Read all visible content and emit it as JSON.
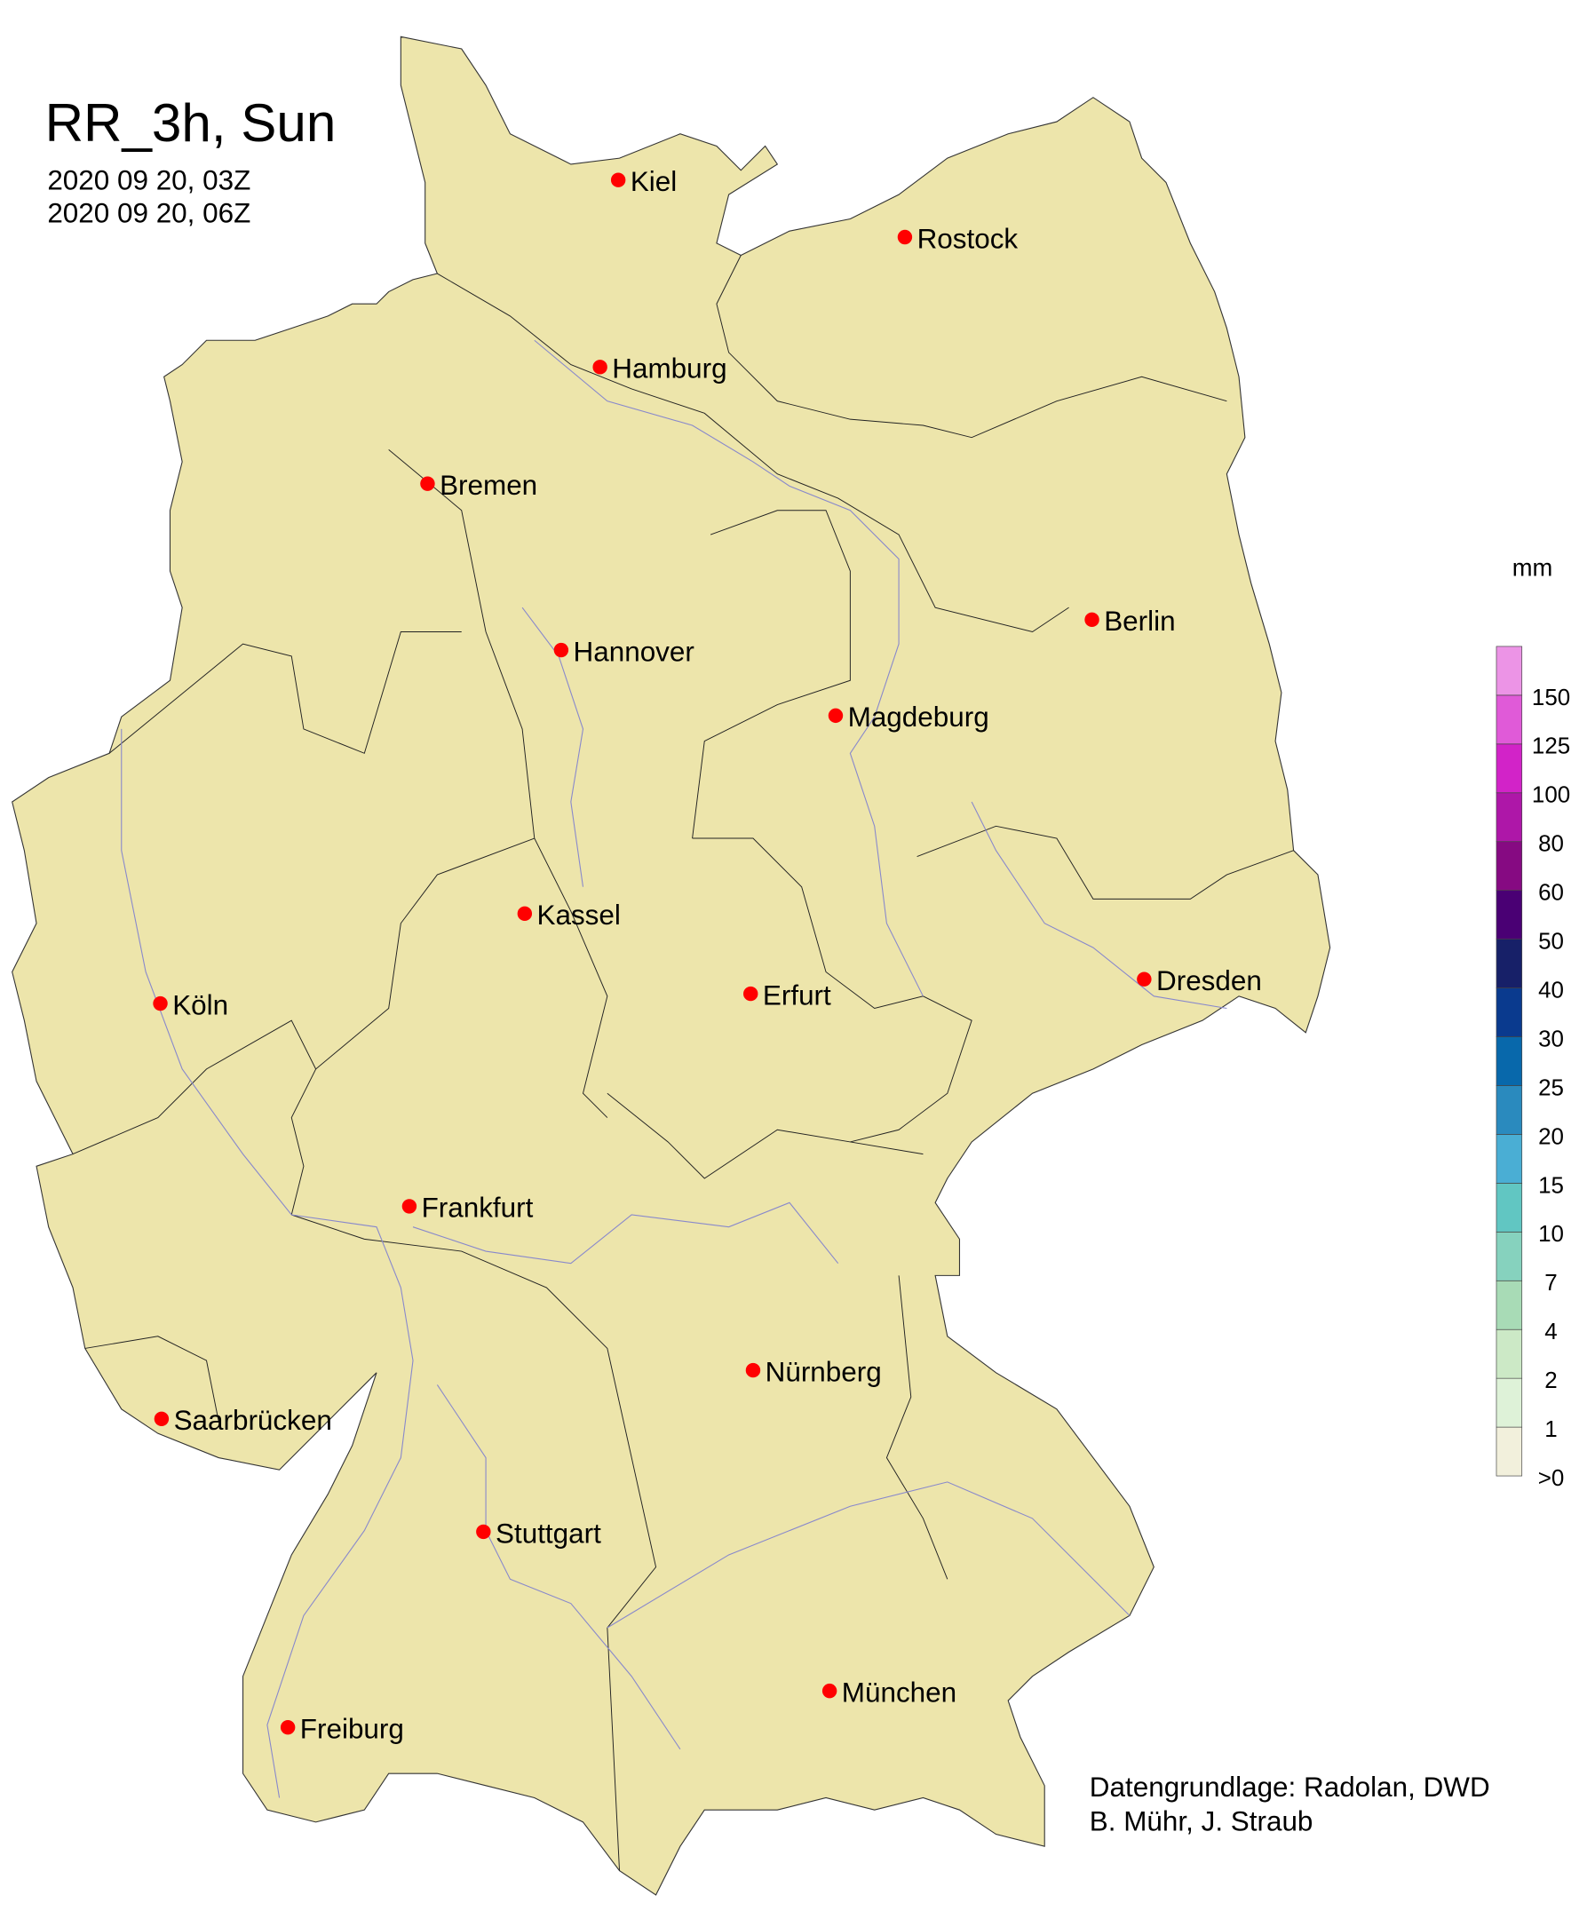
{
  "title": "RR_3h, Sun",
  "time_start": "2020 09 20, 03Z",
  "time_end": "2020 09 20, 06Z",
  "land_color": "#ede5ab",
  "marker_color": "#ff0000",
  "cities": [
    {
      "name": "Kiel"
    },
    {
      "name": "Rostock"
    },
    {
      "name": "Hamburg"
    },
    {
      "name": "Bremen"
    },
    {
      "name": "Berlin"
    },
    {
      "name": "Hannover"
    },
    {
      "name": "Magdeburg"
    },
    {
      "name": "Kassel"
    },
    {
      "name": "Köln"
    },
    {
      "name": "Erfurt"
    },
    {
      "name": "Dresden"
    },
    {
      "name": "Frankfurt"
    },
    {
      "name": "Nürnberg"
    },
    {
      "name": "Saarbrücken"
    },
    {
      "name": "Stuttgart"
    },
    {
      "name": "München"
    },
    {
      "name": "Freiburg"
    }
  ],
  "legend": {
    "unit": "mm",
    "labels": [
      ">0",
      "1",
      "2",
      "4",
      "7",
      "10",
      "15",
      "20",
      "25",
      "30",
      "40",
      "50",
      "60",
      "80",
      "100",
      "125",
      "150"
    ],
    "colors": [
      "#f2f0dc",
      "#def2d8",
      "#cce9c6",
      "#a8dbb6",
      "#86d2be",
      "#61c6c2",
      "#4aaed4",
      "#2a8abe",
      "#0868ab",
      "#0a3a8e",
      "#172068",
      "#4a0074",
      "#860a82",
      "#ae17a8",
      "#d223c8",
      "#e05ad8",
      "#ec94e6"
    ]
  },
  "credits": {
    "line1": "Datengrundlage: Radolan, DWD",
    "line2": "B. Mühr, J. Straub"
  }
}
